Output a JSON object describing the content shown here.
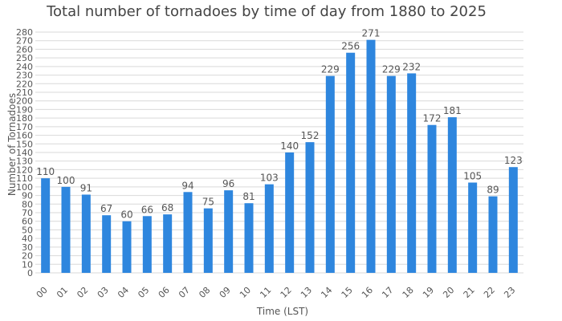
{
  "chart_data": {
    "type": "bar",
    "title": "Total number of tornadoes by time of day from 1880 to 2025",
    "xlabel": "Time (LST)",
    "ylabel": "Number of Tornadoes",
    "categories": [
      "00",
      "01",
      "02",
      "03",
      "04",
      "05",
      "06",
      "07",
      "08",
      "09",
      "10",
      "11",
      "12",
      "13",
      "14",
      "15",
      "16",
      "17",
      "18",
      "19",
      "20",
      "21",
      "22",
      "23"
    ],
    "series": [
      {
        "values": [
          110,
          100,
          91,
          67,
          60,
          66,
          68,
          94,
          75,
          96,
          81,
          103,
          140,
          152,
          229,
          256,
          271,
          229,
          232,
          172,
          181,
          105,
          89,
          123
        ]
      }
    ],
    "ylim": [
      0,
      280
    ],
    "ytick_step": 10,
    "grid": true,
    "legend": "none",
    "bar_color": "#2e86de",
    "show_data_labels": true
  }
}
